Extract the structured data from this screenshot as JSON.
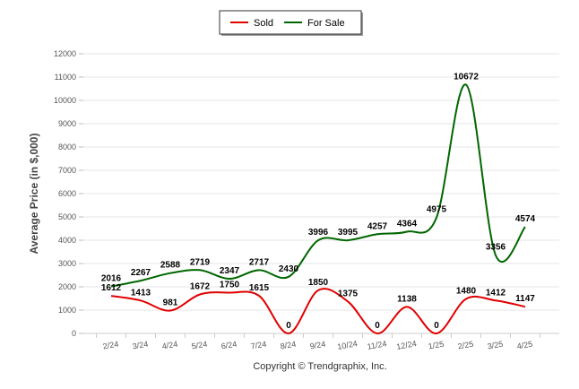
{
  "chart_data": {
    "type": "line",
    "ylabel": "Average Price (in $,000)",
    "ylim": [
      0,
      12000
    ],
    "yticks": [
      0,
      1000,
      2000,
      3000,
      4000,
      5000,
      6000,
      7000,
      8000,
      9000,
      10000,
      11000,
      12000
    ],
    "categories": [
      "2/24",
      "3/24",
      "4/24",
      "5/24",
      "6/24",
      "7/24",
      "8/24",
      "9/24",
      "10/24",
      "11/24",
      "12/24",
      "1/25",
      "2/25",
      "3/25",
      "4/25"
    ],
    "series": [
      {
        "name": "Sold",
        "color": "#e00000",
        "values": [
          1612,
          1413,
          981,
          1672,
          1750,
          1615,
          0,
          1850,
          1375,
          0,
          1138,
          0,
          1480,
          1412,
          1147
        ]
      },
      {
        "name": "For Sale",
        "color": "#006600",
        "values": [
          2016,
          2267,
          2588,
          2719,
          2347,
          2717,
          2430,
          3996,
          3995,
          4257,
          4364,
          4975,
          10672,
          3356,
          4574
        ]
      }
    ],
    "legend_position": "top-center",
    "grid": "horizontal"
  },
  "footer": {
    "copyright": "Copyright © Trendgraphix, Inc."
  }
}
